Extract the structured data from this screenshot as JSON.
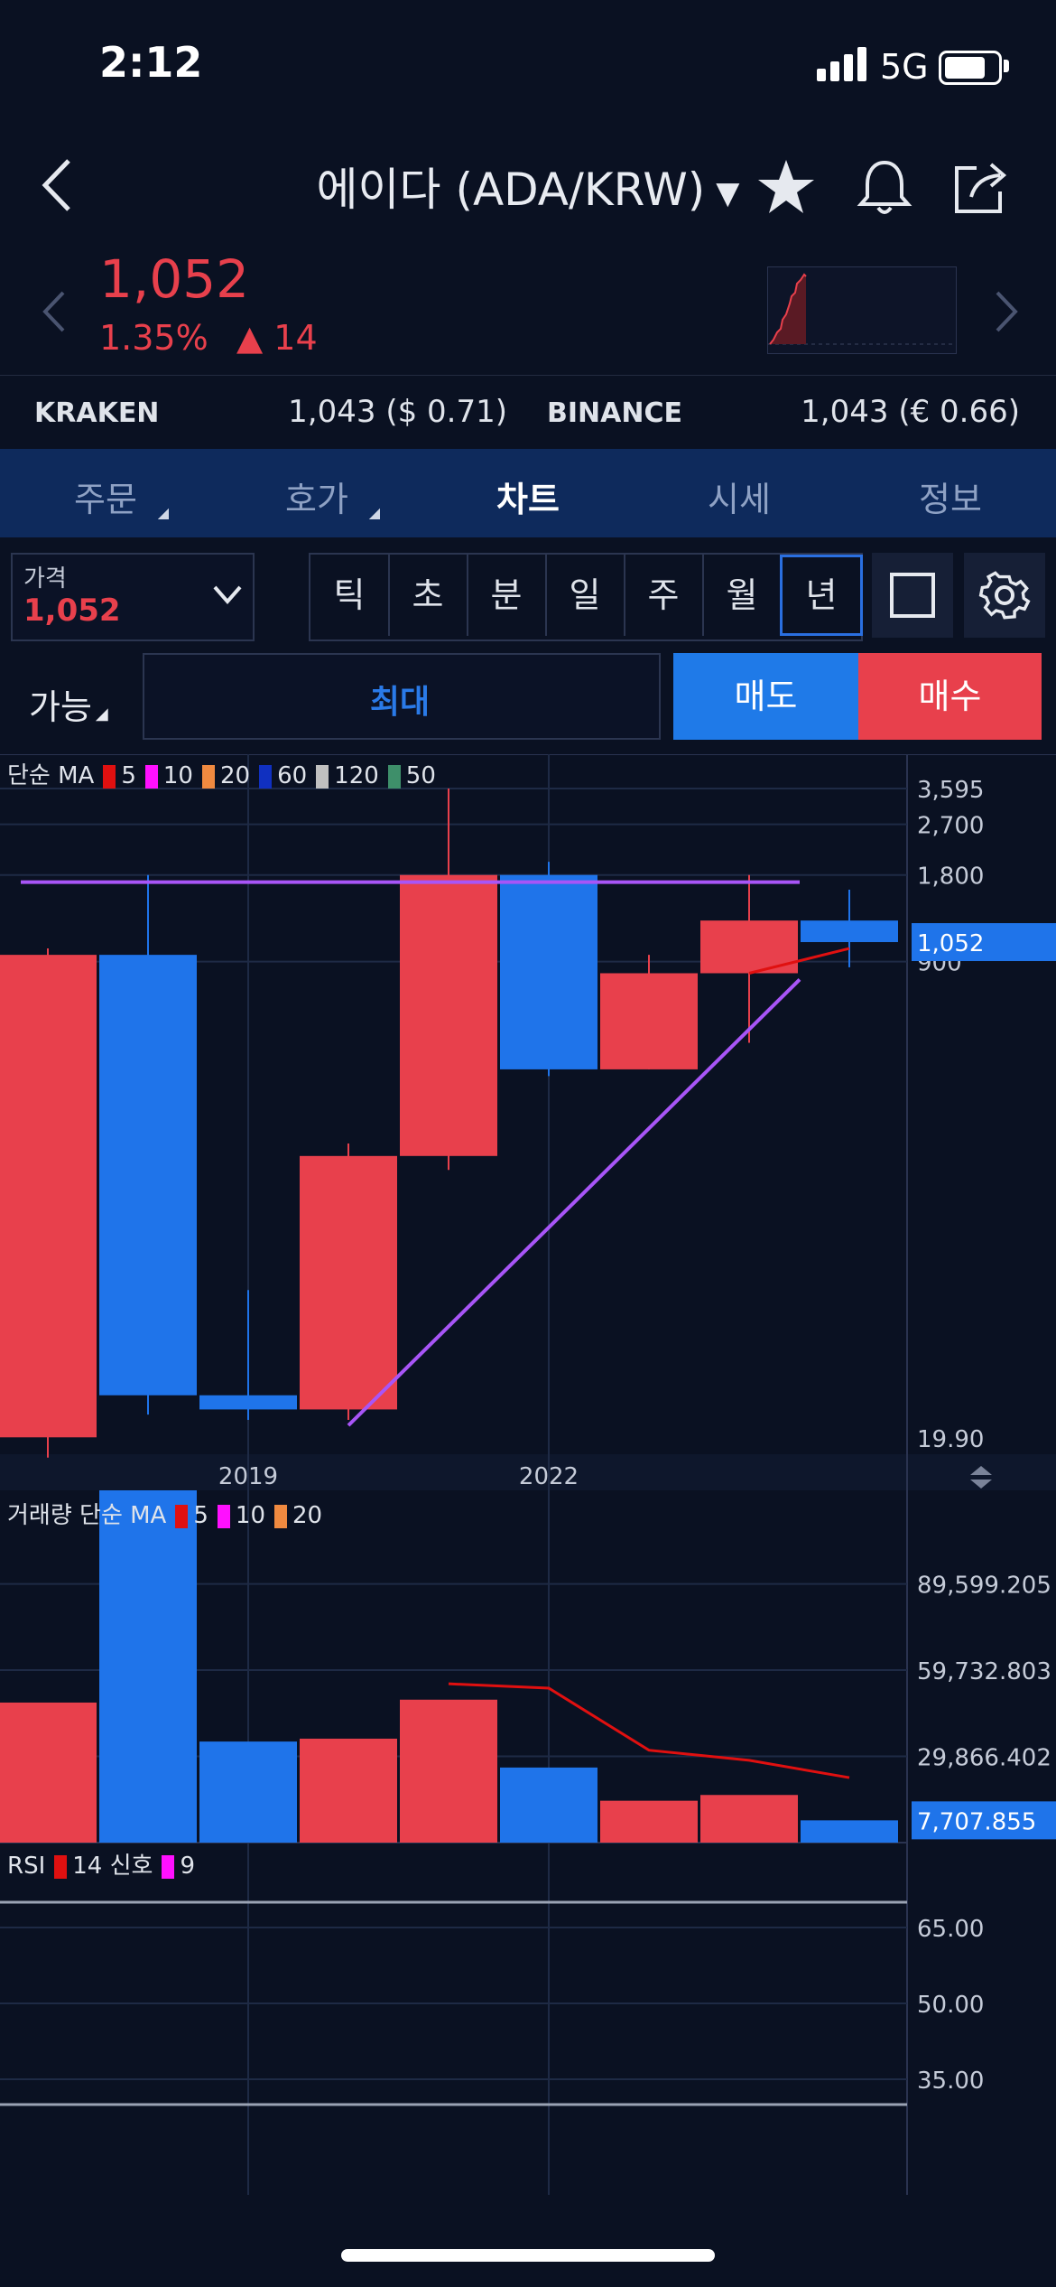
{
  "status": {
    "time": "2:12",
    "network": "5G"
  },
  "header": {
    "title": "에이다 (ADA/KRW)",
    "caret": "▼"
  },
  "price": {
    "current": "1,052",
    "change_pct": "1.35%",
    "change_delta": "▲ 14"
  },
  "exchanges": [
    {
      "name": "KRAKEN",
      "value": "1,043 ($ 0.71)"
    },
    {
      "name": "BINANCE",
      "value": "1,043 (€ 0.66)"
    }
  ],
  "tabs": [
    {
      "label": "주문",
      "active": false,
      "has_tri": true
    },
    {
      "label": "호가",
      "active": false,
      "has_tri": true
    },
    {
      "label": "차트",
      "active": true,
      "has_tri": false
    },
    {
      "label": "시세",
      "active": false,
      "has_tri": false
    },
    {
      "label": "정보",
      "active": false,
      "has_tri": false
    }
  ],
  "price_box": {
    "label": "가격",
    "value": "1,052"
  },
  "periods": [
    "틱",
    "초",
    "분",
    "일",
    "주",
    "월",
    "년"
  ],
  "active_period": "년",
  "order": {
    "avail_label": "가능",
    "max_label": "최대",
    "sell_label": "매도",
    "buy_label": "매수"
  },
  "colors": {
    "up": "#e8404c",
    "down": "#1f74ea",
    "trend": "#a855f7",
    "ma5": "#e01010"
  },
  "chart_data": [
    {
      "type": "candlestick",
      "legend": {
        "prefix": "단순 MA",
        "items": [
          {
            "name": "5",
            "color": "#e01010"
          },
          {
            "name": "10",
            "color": "#ff10ff"
          },
          {
            "name": "20",
            "color": "#f08a40"
          },
          {
            "name": "60",
            "color": "#1030c0"
          },
          {
            "name": "120",
            "color": "#c0c0c0"
          },
          {
            "name": "50",
            "color": "#3e8f6a"
          }
        ]
      },
      "x_labels": [
        {
          "label": "2019",
          "index": 2
        },
        {
          "label": "2022",
          "index": 5
        }
      ],
      "y_ticks": [
        "3,595",
        "2,700",
        "1,800",
        "900",
        "19.90"
      ],
      "y_tick_values": [
        3595,
        2700,
        1800,
        900,
        19.9
      ],
      "last_price_label": "1,052",
      "candles": [
        {
          "open": 20,
          "close": 950,
          "high": 1000,
          "low": 17,
          "dir": "up"
        },
        {
          "open": 950,
          "close": 28,
          "high": 1800,
          "low": 24,
          "dir": "down"
        },
        {
          "open": 28,
          "close": 25,
          "high": 65,
          "low": 23,
          "dir": "down"
        },
        {
          "open": 25,
          "close": 190,
          "high": 210,
          "low": 23,
          "dir": "up"
        },
        {
          "open": 190,
          "close": 1800,
          "high": 3595,
          "low": 170,
          "dir": "up"
        },
        {
          "open": 1800,
          "close": 380,
          "high": 2000,
          "low": 360,
          "dir": "down"
        },
        {
          "open": 380,
          "close": 820,
          "high": 950,
          "low": 380,
          "dir": "up"
        },
        {
          "open": 820,
          "close": 1250,
          "high": 1800,
          "low": 470,
          "dir": "up"
        },
        {
          "open": 1250,
          "close": 1052,
          "high": 1600,
          "low": 860,
          "dir": "down"
        }
      ],
      "ma5": [
        null,
        null,
        null,
        null,
        null,
        null,
        null,
        820,
        1000
      ],
      "trendlines": [
        {
          "from": {
            "index": 0,
            "value": 1700
          },
          "to": {
            "index": 8,
            "value": 1700
          }
        },
        {
          "from": {
            "index": 3,
            "value": 22
          },
          "to": {
            "index": 8,
            "value": 780
          }
        }
      ]
    },
    {
      "type": "bar",
      "legend": {
        "prefix": "거래량 단순 MA",
        "items": [
          {
            "name": "5",
            "color": "#e01010"
          },
          {
            "name": "10",
            "color": "#ff10ff"
          },
          {
            "name": "20",
            "color": "#f08a40"
          }
        ]
      },
      "y_ticks": [
        "89,599.205",
        "59,732.803",
        "29,866.402"
      ],
      "y_tick_values": [
        89599.205,
        59732.803,
        29866.402
      ],
      "last_value_label": "7,707.855",
      "values": [
        48500,
        122000,
        35000,
        36000,
        49500,
        26000,
        14500,
        16500,
        7707.855
      ],
      "dirs": [
        "up",
        "down",
        "down",
        "up",
        "up",
        "down",
        "up",
        "up",
        "down"
      ],
      "ma5": [
        null,
        null,
        null,
        null,
        55000,
        53500,
        32000,
        28500,
        22500
      ]
    },
    {
      "type": "line",
      "legend": {
        "prefix": "RSI",
        "items": [
          {
            "name": "14",
            "color": "#e01010"
          },
          {
            "name": "신호",
            "color": ""
          },
          {
            "name": "9",
            "color": "#ff10ff"
          }
        ]
      },
      "y_ticks": [
        "65.00",
        "50.00",
        "35.00"
      ],
      "y_tick_values": [
        65,
        50,
        35
      ],
      "bands": [
        70,
        30
      ]
    }
  ]
}
